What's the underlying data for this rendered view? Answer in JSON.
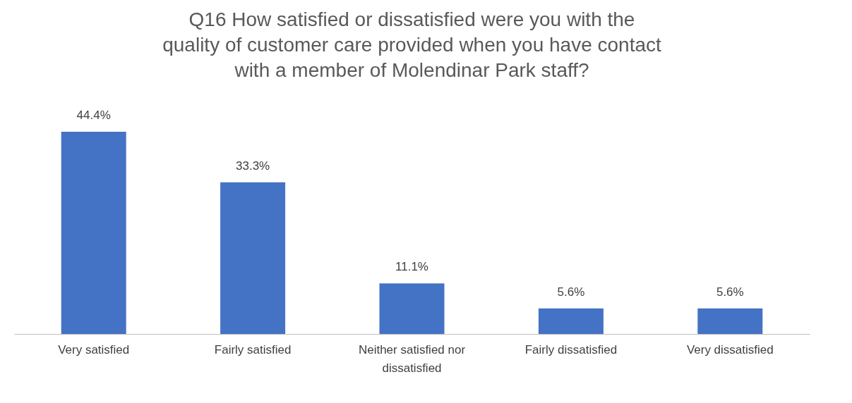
{
  "chart_data": {
    "type": "bar",
    "title": "Q16 How satisfied or dissatisfied were you with the quality of customer care provided when you have contact with a member of Molendinar Park staff?",
    "categories": [
      "Very satisfied",
      "Fairly satisfied",
      "Neither satisfied nor dissatisfied",
      "Fairly dissatisfied",
      "Very dissatisfied"
    ],
    "values": [
      44.4,
      33.3,
      11.1,
      5.6,
      5.6
    ],
    "value_labels": [
      "44.4%",
      "33.3%",
      "11.1%",
      "5.6%",
      "5.6%"
    ],
    "color": "#4472c4"
  }
}
